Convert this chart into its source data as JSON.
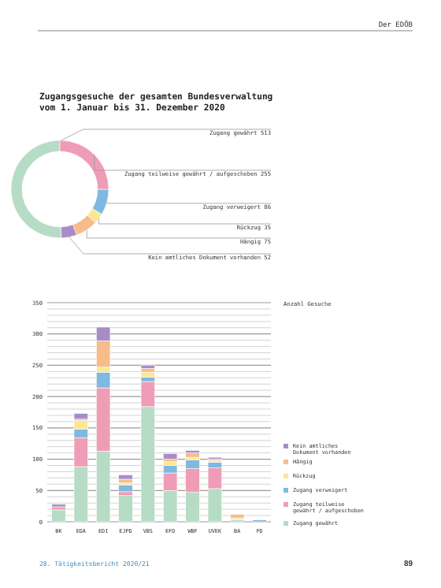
{
  "chart_data": [
    {
      "type": "donut",
      "title": "Zugangsgesuche der gesamten Bundesverwaltung\nvom 1. Januar bis 31. Dezember 2020",
      "categories": [
        "Zugang gewährt",
        "Zugang teilweise gewährt / aufgeschoben",
        "Zugang verweigert",
        "Rückzug",
        "Hängig",
        "Kein amtliches Dokument vorhanden"
      ],
      "values": [
        513,
        255,
        86,
        35,
        75,
        52
      ],
      "colors": [
        "#b6dcc5",
        "#ef9db6",
        "#7db9e0",
        "#fbe796",
        "#f6bd8a",
        "#a98cc6"
      ],
      "data_labels": true,
      "annotations": [
        "Der EDÖB"
      ]
    },
    {
      "type": "bar",
      "stacked": true,
      "ylabel": "Anzahl Gesuche",
      "categories": [
        "BK",
        "EDA",
        "EDI",
        "EJPD",
        "VBS",
        "EFD",
        "WBF",
        "UVEK",
        "BA",
        "PD"
      ],
      "series": [
        {
          "name": "Zugang gewährt",
          "color": "#b6dcc5",
          "values": [
            19,
            88,
            113,
            42,
            184,
            50,
            47,
            53,
            3,
            0
          ]
        },
        {
          "name": "Zugang teilweise gewährt / aufgeschoben",
          "color": "#ef9db6",
          "values": [
            5,
            46,
            101,
            6,
            40,
            28,
            38,
            33,
            0,
            0
          ]
        },
        {
          "name": "Zugang verweigert",
          "color": "#7db9e0",
          "values": [
            0,
            14,
            25,
            11,
            7,
            12,
            14,
            9,
            0,
            3
          ]
        },
        {
          "name": "Rückzug",
          "color": "#fbe796",
          "values": [
            0,
            14,
            8,
            3,
            8,
            6,
            4,
            3,
            3,
            0
          ]
        },
        {
          "name": "Hängig",
          "color": "#f6bd8a",
          "values": [
            0,
            2,
            42,
            6,
            6,
            4,
            7,
            2,
            6,
            0
          ]
        },
        {
          "name": "Kein amtliches Dokument vorhanden",
          "color": "#a98cc6",
          "values": [
            4,
            9,
            22,
            7,
            5,
            9,
            4,
            3,
            0,
            0
          ]
        }
      ],
      "ylim": [
        0,
        350
      ],
      "yticks": [
        0,
        {
          "value": 10,
          "label": null
        },
        {
          "value": 20,
          "label": null
        },
        {
          "value": 30,
          "label": null
        },
        {
          "value": 40,
          "label": null
        },
        50,
        {
          "value": 60,
          "label": null
        },
        {
          "value": 70,
          "label": null
        },
        {
          "value": 80,
          "label": null
        },
        {
          "value": 90,
          "label": null
        },
        100,
        {
          "value": 110,
          "label": null
        },
        {
          "value": 120,
          "label": null
        },
        {
          "value": 130,
          "label": null
        },
        {
          "value": 140,
          "label": null
        },
        150,
        {
          "value": 160,
          "label": null
        },
        {
          "value": 170,
          "label": null
        },
        {
          "value": 180,
          "label": null
        },
        {
          "value": 190,
          "label": null
        },
        200,
        {
          "value": 210,
          "label": null
        },
        {
          "value": 220,
          "label": null
        },
        {
          "value": 230,
          "label": null
        },
        {
          "value": 240,
          "label": null
        },
        250,
        {
          "value": 260,
          "label": null
        },
        {
          "value": 270,
          "label": null
        },
        {
          "value": 280,
          "label": null
        },
        {
          "value": 290,
          "label": null
        },
        300,
        {
          "value": 310,
          "label": null
        },
        {
          "value": 320,
          "label": null
        },
        {
          "value": 330,
          "label": null
        },
        {
          "value": 340,
          "label": null
        },
        350
      ],
      "grid": "y",
      "legend": "right",
      "annotations": [
        "28. Tätigkeitsbericht 2020/21",
        "89"
      ]
    }
  ]
}
